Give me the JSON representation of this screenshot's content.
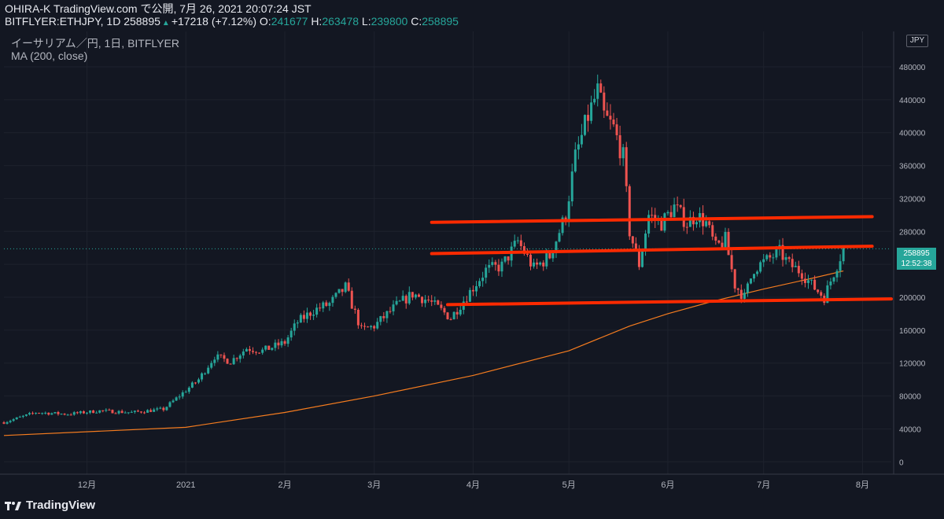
{
  "header": {
    "line1": "OHIRA-K TradingView.com で公開, 7月 26, 2021 20:07:24 JST",
    "symbol": "BITFLYER:ETHJPY, 1D 258895",
    "change": "+17218 (+7.12%)",
    "o_label": "O:",
    "o_value": "241677",
    "h_label": "H:",
    "h_value": "263478",
    "l_label": "L:",
    "l_value": "239800",
    "c_label": "C:",
    "c_value": "258895"
  },
  "legend": {
    "series": "イーサリアム／円, 1日, BITFLYER",
    "indicator": "MA (200, close)"
  },
  "price_tag": {
    "price": "258895",
    "countdown": "12:52:38"
  },
  "currency": "JPY",
  "brand": "TradingView",
  "colors": {
    "background": "#131722",
    "up": "#26a69a",
    "down": "#ef5350",
    "ma": "#f57c1f",
    "trendline": "#ff2a00",
    "grid": "#1e222d",
    "text": "#b2b5be"
  },
  "chart_data": {
    "type": "candlestick",
    "y_axis": {
      "ticks": [
        0,
        40000,
        80000,
        120000,
        160000,
        200000,
        240000,
        280000,
        320000,
        360000,
        400000,
        440000,
        480000
      ],
      "range": [
        -15000,
        523000
      ]
    },
    "x_axis": {
      "ticks": [
        {
          "label": "12月",
          "date": "2020-12-01"
        },
        {
          "label": "2021",
          "date": "2021-01-01"
        },
        {
          "label": "2月",
          "date": "2021-02-01"
        },
        {
          "label": "3月",
          "date": "2021-03-01"
        },
        {
          "label": "4月",
          "date": "2021-04-01"
        },
        {
          "label": "5月",
          "date": "2021-05-01"
        },
        {
          "label": "6月",
          "date": "2021-06-01"
        },
        {
          "label": "7月",
          "date": "2021-07-01"
        },
        {
          "label": "8月",
          "date": "2021-08-01"
        }
      ],
      "range": [
        "2020-11-05",
        "2021-08-10"
      ]
    },
    "close_series": [
      [
        "2020-11-05",
        48000
      ],
      [
        "2020-11-15",
        60000
      ],
      [
        "2020-11-25",
        58000
      ],
      [
        "2020-12-05",
        62000
      ],
      [
        "2020-12-15",
        60000
      ],
      [
        "2020-12-25",
        64000
      ],
      [
        "2021-01-05",
        100000
      ],
      [
        "2021-01-10",
        128000
      ],
      [
        "2021-01-15",
        122000
      ],
      [
        "2021-01-20",
        138000
      ],
      [
        "2021-01-25",
        135000
      ],
      [
        "2021-02-01",
        145000
      ],
      [
        "2021-02-05",
        170000
      ],
      [
        "2021-02-10",
        184000
      ],
      [
        "2021-02-15",
        192000
      ],
      [
        "2021-02-20",
        212000
      ],
      [
        "2021-02-25",
        160000
      ],
      [
        "2021-03-01",
        165000
      ],
      [
        "2021-03-08",
        190000
      ],
      [
        "2021-03-13",
        204000
      ],
      [
        "2021-03-18",
        196000
      ],
      [
        "2021-03-25",
        175000
      ],
      [
        "2021-04-01",
        212000
      ],
      [
        "2021-04-05",
        233000
      ],
      [
        "2021-04-10",
        238000
      ],
      [
        "2021-04-15",
        268000
      ],
      [
        "2021-04-20",
        235000
      ],
      [
        "2021-04-25",
        250000
      ],
      [
        "2021-04-30",
        300000
      ],
      [
        "2021-05-03",
        370000
      ],
      [
        "2021-05-07",
        420000
      ],
      [
        "2021-05-10",
        450000
      ],
      [
        "2021-05-12",
        420000
      ],
      [
        "2021-05-15",
        405000
      ],
      [
        "2021-05-18",
        370000
      ],
      [
        "2021-05-20",
        280000
      ],
      [
        "2021-05-23",
        240000
      ],
      [
        "2021-05-26",
        300000
      ],
      [
        "2021-05-30",
        290000
      ],
      [
        "2021-06-03",
        310000
      ],
      [
        "2021-06-07",
        290000
      ],
      [
        "2021-06-10",
        300000
      ],
      [
        "2021-06-13",
        290000
      ],
      [
        "2021-06-16",
        260000
      ],
      [
        "2021-06-19",
        270000
      ],
      [
        "2021-06-22",
        215000
      ],
      [
        "2021-06-25",
        200000
      ],
      [
        "2021-06-28",
        235000
      ],
      [
        "2021-07-02",
        245000
      ],
      [
        "2021-07-06",
        255000
      ],
      [
        "2021-07-09",
        240000
      ],
      [
        "2021-07-13",
        230000
      ],
      [
        "2021-07-16",
        215000
      ],
      [
        "2021-07-20",
        200000
      ],
      [
        "2021-07-23",
        230000
      ],
      [
        "2021-07-26",
        258895
      ]
    ],
    "ma200": [
      [
        "2020-11-05",
        32000
      ],
      [
        "2021-01-01",
        42000
      ],
      [
        "2021-02-01",
        60000
      ],
      [
        "2021-03-01",
        80000
      ],
      [
        "2021-04-01",
        105000
      ],
      [
        "2021-05-01",
        135000
      ],
      [
        "2021-05-20",
        165000
      ],
      [
        "2021-06-01",
        180000
      ],
      [
        "2021-06-15",
        195000
      ],
      [
        "2021-07-01",
        210000
      ],
      [
        "2021-07-15",
        222000
      ],
      [
        "2021-07-26",
        232000
      ]
    ],
    "trendlines": [
      {
        "from": [
          "2021-03-19",
          291000
        ],
        "to": [
          "2021-08-04",
          298000
        ]
      },
      {
        "from": [
          "2021-03-19",
          253000
        ],
        "to": [
          "2021-08-04",
          262000
        ]
      },
      {
        "from": [
          "2021-03-24",
          191000
        ],
        "to": [
          "2021-08-10",
          198000
        ]
      }
    ],
    "last_price": 258895
  }
}
